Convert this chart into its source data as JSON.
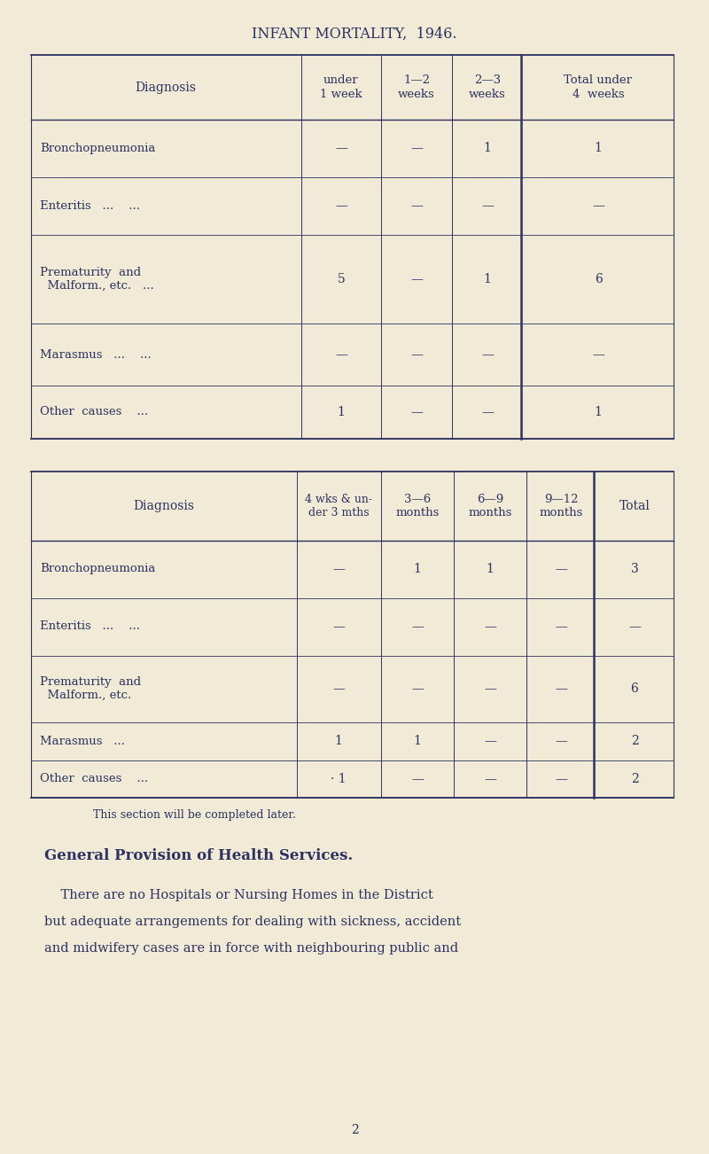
{
  "bg_color": "#f0ead6",
  "text_color": "#2d3260",
  "title": "INFANT MORTALITY,  1946.",
  "table1_headers": [
    "Diagnosis",
    "under\n1 week",
    "1—2\nweeks",
    "2—3\nweeks",
    "Total under\n4  weeks"
  ],
  "table1_rows": [
    [
      "Bronchopneumonia",
      "—",
      "—",
      "1",
      "1"
    ],
    [
      "Enteritis   ...    ...",
      "—",
      "—",
      "—",
      "—"
    ],
    [
      "Prematurity  and\n  Malform., etc.   ...",
      "5",
      "—",
      "1",
      "6"
    ],
    [
      "Marasmus   ...    ...",
      "—",
      "—",
      "—",
      "—"
    ],
    [
      "Other  causes    ...",
      "1",
      "—",
      "—",
      "1"
    ]
  ],
  "table2_headers": [
    "Diagnosis",
    "4 wks & un-\nder 3 mths",
    "3—6\nmonths",
    "6—9\nmonths",
    "9—12\nmonths",
    "Total"
  ],
  "table2_rows": [
    [
      "Bronchopneumonia",
      "—",
      "1",
      "1",
      "—",
      "3"
    ],
    [
      "Enteritis   ...    ...",
      "—",
      "—",
      "—",
      "—",
      "—"
    ],
    [
      "Prematurity  and\n  Malform., etc.",
      "—",
      "—",
      "—",
      "—",
      "6"
    ],
    [
      "Marasmus   ...",
      "1",
      "1",
      "—",
      "—",
      "2"
    ],
    [
      "Other  causes    ...",
      "· 1",
      "—",
      "—",
      "—",
      "2"
    ]
  ],
  "note": "This section will be completed later.",
  "section_title": "General Provision of Health Services.",
  "body_text_lines": [
    "    There are no Hospitals or Nursing Homes in the District",
    "but adequate arrangements for dealing with sickness, accident",
    "and midwifery cases are in force with neighbouring public and"
  ],
  "page_number": "2"
}
